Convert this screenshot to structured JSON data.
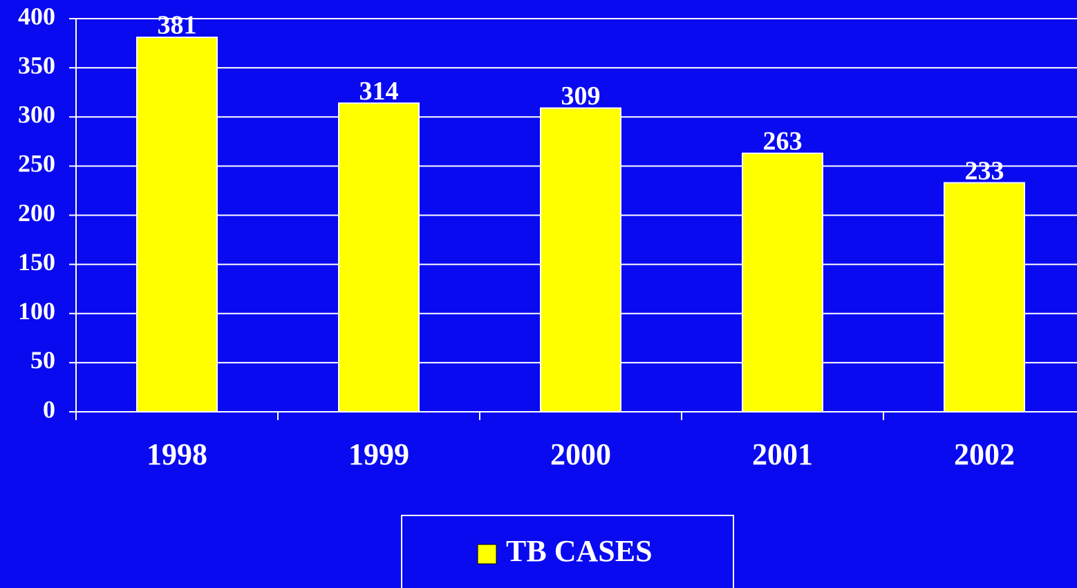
{
  "chart_data": {
    "type": "bar",
    "categories": [
      "1998",
      "1999",
      "2000",
      "2001",
      "2002"
    ],
    "series": [
      {
        "name": "TB CASES",
        "color": "#ffff00",
        "values": [
          381,
          314,
          309,
          263,
          233
        ]
      }
    ],
    "ylim": [
      0,
      400
    ],
    "yticks": [
      0,
      50,
      100,
      150,
      200,
      250,
      300,
      350,
      400
    ],
    "grid": true,
    "legend": "bottom"
  }
}
